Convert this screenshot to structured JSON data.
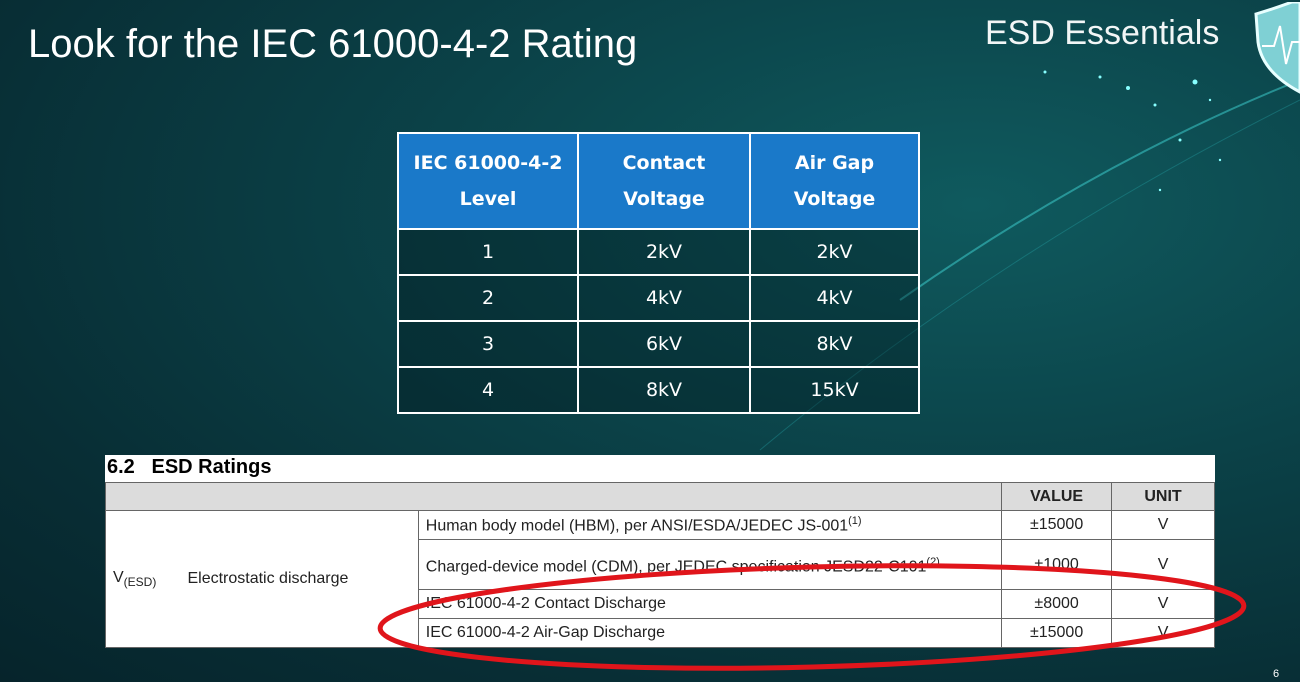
{
  "slide": {
    "title": "Look for the IEC 61000-4-2 Rating",
    "brand": "ESD Essentials",
    "page_number": "6"
  },
  "iec_table": {
    "headers": [
      "IEC 61000-4-2 Level",
      "Contact Voltage",
      "Air Gap Voltage"
    ],
    "header_lines": [
      [
        "IEC 61000-4-2",
        "Level"
      ],
      [
        "Contact",
        "Voltage"
      ],
      [
        "Air Gap",
        "Voltage"
      ]
    ],
    "rows": [
      [
        "1",
        "2kV",
        "2kV"
      ],
      [
        "2",
        "4kV",
        "4kV"
      ],
      [
        "3",
        "6kV",
        "8kV"
      ],
      [
        "4",
        "8kV",
        "15kV"
      ]
    ]
  },
  "esd_ratings": {
    "section_title": "6.2   ESD Ratings",
    "headers": {
      "value": "VALUE",
      "unit": "UNIT"
    },
    "symbol": "V",
    "symbol_sub": "(ESD)",
    "parameter": "Electrostatic discharge",
    "rows": [
      {
        "condition": "Human body model (HBM), per ANSI/ESDA/JEDEC JS-001",
        "note": "(1)",
        "value": "±15000",
        "unit": "V"
      },
      {
        "condition": "Charged-device model (CDM), per JEDEC specification JESD22-C101",
        "note": "(2)",
        "value": "±1000",
        "unit": "V"
      },
      {
        "condition": "IEC 61000-4-2 Contact Discharge",
        "note": "",
        "value": "±8000",
        "unit": "V"
      },
      {
        "condition": "IEC 61000-4-2 Air-Gap Discharge",
        "note": "",
        "value": "±15000",
        "unit": "V"
      }
    ]
  },
  "colors": {
    "table_header": "#1a79c9",
    "highlight_ring": "#e0151b",
    "background": "#0b4248"
  }
}
